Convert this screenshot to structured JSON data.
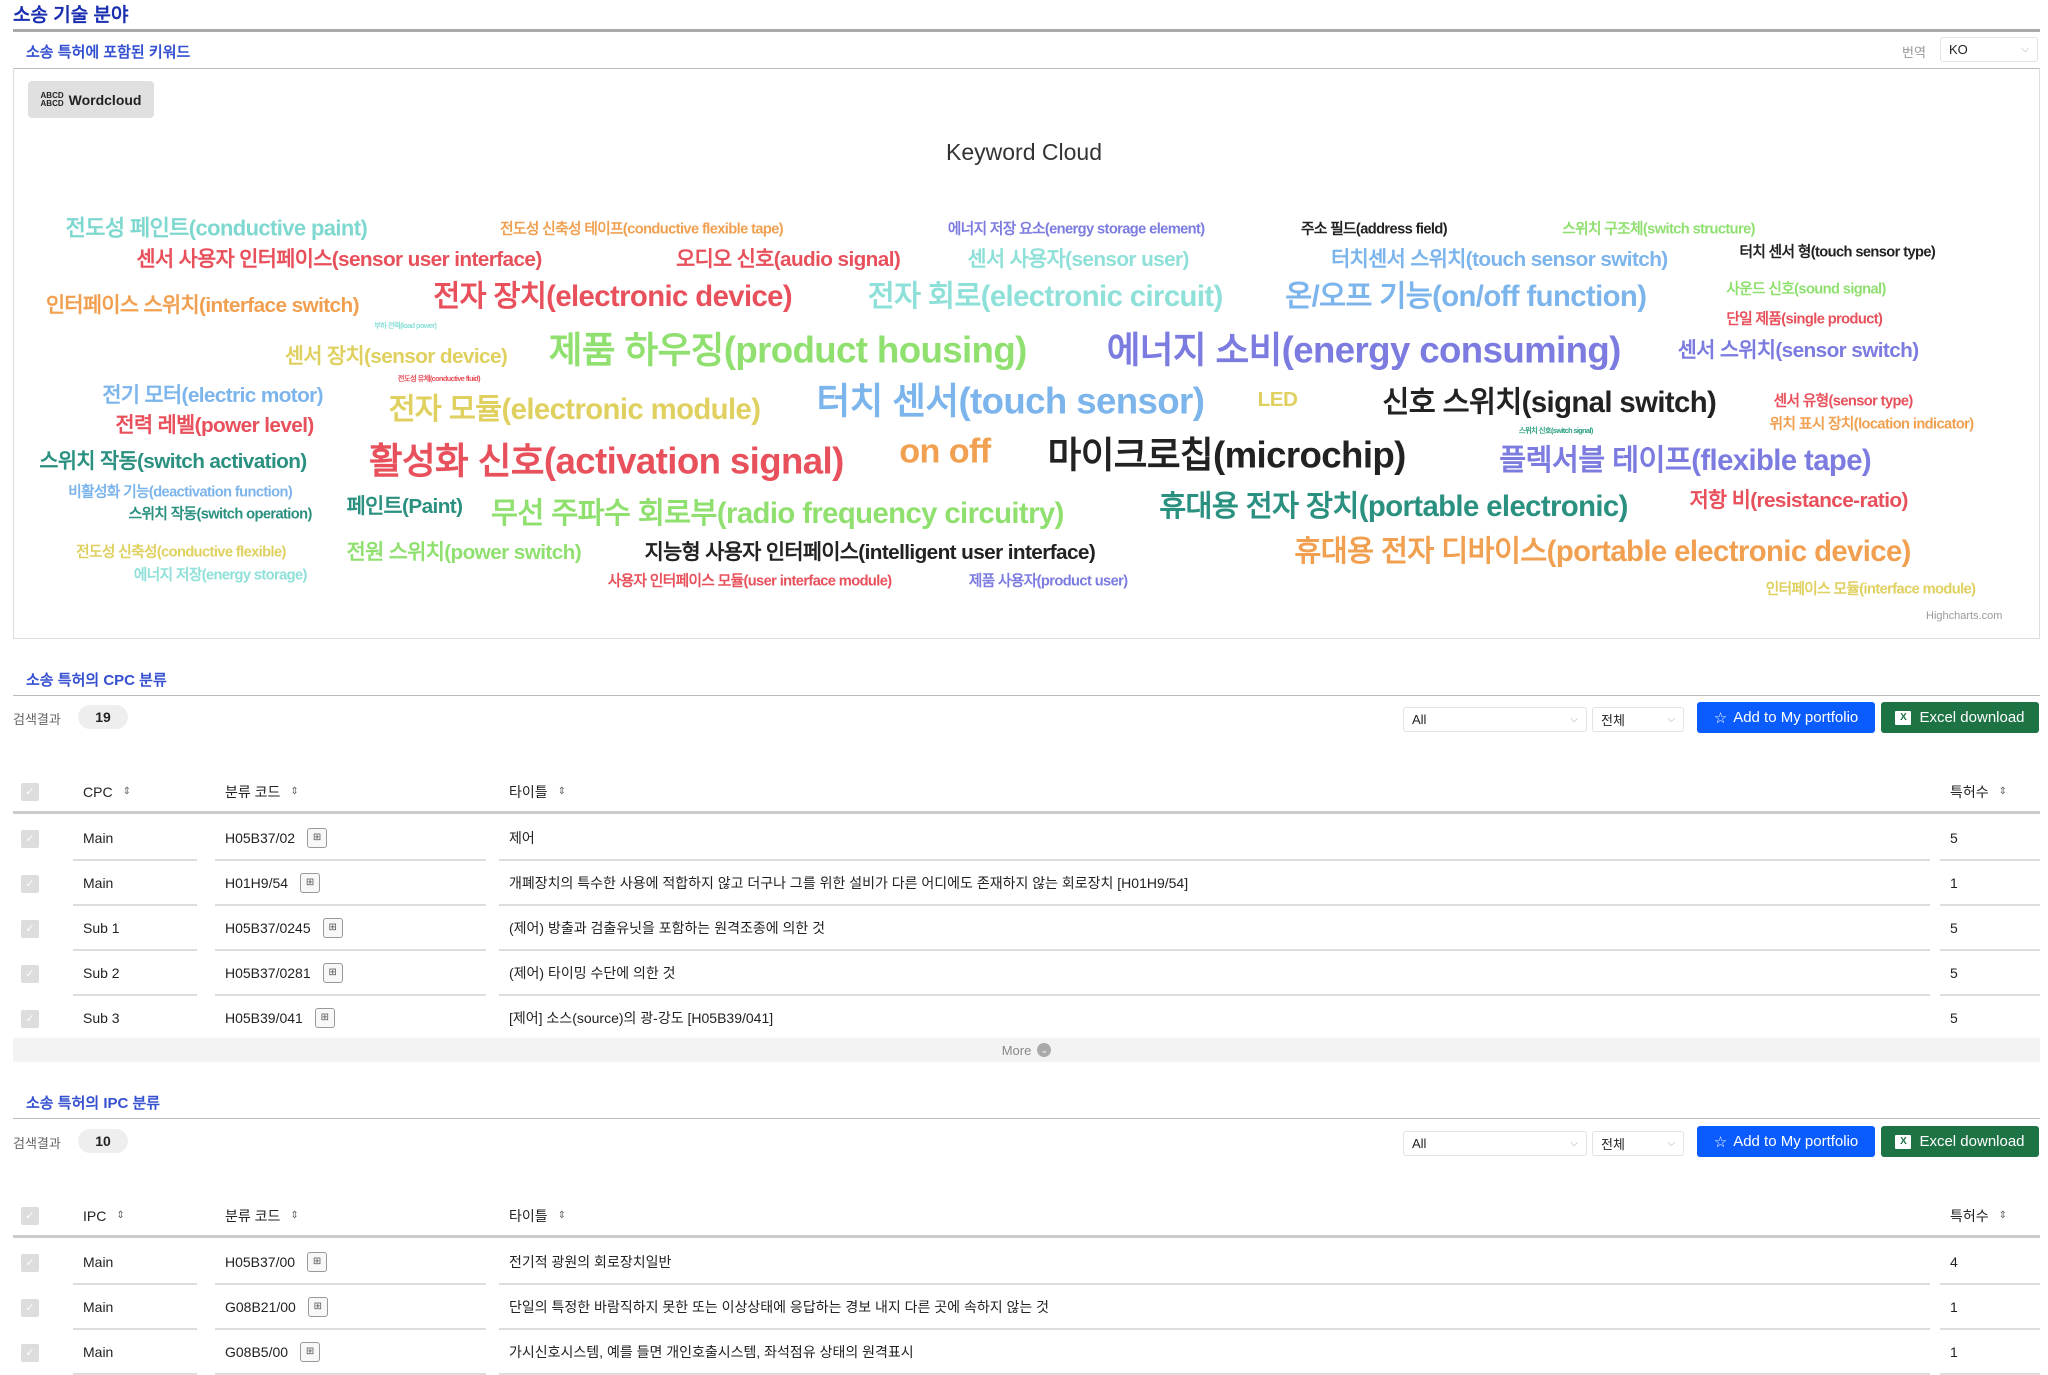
{
  "page_title": "소송 기술 분야",
  "keywords_section": {
    "title": "소송 특허에 포함된 키워드",
    "translate_label": "번역",
    "language": "KO",
    "wordcloud_button": "Wordcloud",
    "wordcloud_icon": "wordcloud-icon",
    "chart_title": "Keyword Cloud",
    "credits": "Highcharts.com",
    "words": [
      {
        "text": "전도성 페인트(conductive paint)",
        "color": "#7fd8d0"
      },
      {
        "text": "전도성 신축성 테이프(conductive flexible tape)",
        "color": "#f0a050"
      },
      {
        "text": "에너지 저장 요소(energy storage element)",
        "color": "#7b7be0"
      },
      {
        "text": "주소 필드(address field)",
        "color": "#222222"
      },
      {
        "text": "스위치 구조체(switch structure)",
        "color": "#90e070"
      },
      {
        "text": "센서 사용자 인터페이스(sensor user interface)",
        "color": "#e8505b"
      },
      {
        "text": "오디오 신호(audio signal)",
        "color": "#e8505b"
      },
      {
        "text": "센서 사용자(sensor user)",
        "color": "#8ee0d8"
      },
      {
        "text": "터치센서 스위치(touch sensor switch)",
        "color": "#7cb4ec"
      },
      {
        "text": "터치 센서 형(touch sensor type)",
        "color": "#222222"
      },
      {
        "text": "인터페이스 스위치(interface switch)",
        "color": "#f0a050"
      },
      {
        "text": "전자 장치(electronic device)",
        "color": "#e8505b"
      },
      {
        "text": "전자 회로(electronic circuit)",
        "color": "#8ee0d8"
      },
      {
        "text": "온/오프 기능(on/off function)",
        "color": "#7cb4ec"
      },
      {
        "text": "사운드 신호(sound signal)",
        "color": "#90e070"
      },
      {
        "text": "단일 제품(single product)",
        "color": "#e8505b"
      },
      {
        "text": "부하 전력(load power)",
        "color": "#8ee0d8"
      },
      {
        "text": "센서 장치(sensor device)",
        "color": "#e0d060"
      },
      {
        "text": "제품 하우징(product housing)",
        "color": "#90e070"
      },
      {
        "text": "에너지 소비(energy consuming)",
        "color": "#7b7be0"
      },
      {
        "text": "센서 스위치(sensor switch)",
        "color": "#7b7be0"
      },
      {
        "text": "전도성 유체(conductive fluid)",
        "color": "#e8505b"
      },
      {
        "text": "전기 모터(electric motor)",
        "color": "#7cb4ec"
      },
      {
        "text": "전자 모듈(electronic module)",
        "color": "#e0d060"
      },
      {
        "text": "터치 센서(touch sensor)",
        "color": "#7cb4ec"
      },
      {
        "text": "LED",
        "color": "#e0d060"
      },
      {
        "text": "신호 스위치(signal switch)",
        "color": "#222222"
      },
      {
        "text": "센서 유형(sensor type)",
        "color": "#e8505b"
      },
      {
        "text": "전력 레벨(power level)",
        "color": "#e8505b"
      },
      {
        "text": "위치 표시 장치(location indicator)",
        "color": "#f0a050"
      },
      {
        "text": "스위치 신호(switch signal)",
        "color": "#2aa080"
      },
      {
        "text": "스위치 작동(switch activation)",
        "color": "#2a9080"
      },
      {
        "text": "활성화 신호(activation signal)",
        "color": "#e8505b"
      },
      {
        "text": "on off",
        "color": "#f0a050"
      },
      {
        "text": "마이크로칩(microchip)",
        "color": "#222222"
      },
      {
        "text": "플렉서블 테이프(flexible tape)",
        "color": "#7b7be0"
      },
      {
        "text": "비활성화 기능(deactivation function)",
        "color": "#7cb4ec"
      },
      {
        "text": "페인트(Paint)",
        "color": "#2a9080"
      },
      {
        "text": "무선 주파수 회로부(radio frequency circuitry)",
        "color": "#90e070"
      },
      {
        "text": "휴대용 전자 장치(portable electronic)",
        "color": "#2a9080"
      },
      {
        "text": "저항 비(resistance-ratio)",
        "color": "#e8505b"
      },
      {
        "text": "스위치 작동(switch operation)",
        "color": "#2a9080"
      },
      {
        "text": "전도성 신축성(conductive flexible)",
        "color": "#e0d060"
      },
      {
        "text": "전원 스위치(power switch)",
        "color": "#90e070"
      },
      {
        "text": "지능형 사용자 인터페이스(intelligent user interface)",
        "color": "#222222"
      },
      {
        "text": "휴대용 전자 디바이스(portable electronic device)",
        "color": "#f0a050"
      },
      {
        "text": "에너지 저장(energy storage)",
        "color": "#8ee0d8"
      },
      {
        "text": "사용자 인터페이스 모듈(user interface module)",
        "color": "#e8505b"
      },
      {
        "text": "제품 사용자(product user)",
        "color": "#7b7be0"
      },
      {
        "text": "인터페이스 모듈(interface module)",
        "color": "#e0d060"
      }
    ]
  },
  "cpc": {
    "title": "소송 특허의 CPC 분류",
    "results_label": "검색결과",
    "results_count": "19",
    "filter1": "All",
    "filter2": "전체",
    "add_portfolio": "Add to My portfolio",
    "excel": "Excel download",
    "headers": [
      "CPC",
      "분류 코드",
      "타이틀",
      "특허수"
    ],
    "rows": [
      {
        "type": "Main",
        "code": "H05B37/02",
        "title": "제어",
        "count": "5"
      },
      {
        "type": "Main",
        "code": "H01H9/54",
        "title": "개폐장치의 특수한 사용에 적합하지 않고 더구나 그를 위한 설비가 다른 어디에도 존재하지 않는 회로장치 [H01H9/54]",
        "count": "1"
      },
      {
        "type": "Sub 1",
        "code": "H05B37/0245",
        "title": "(제어) 방출과 검출유닛을 포함하는 원격조종에 의한 것",
        "count": "5"
      },
      {
        "type": "Sub 2",
        "code": "H05B37/0281",
        "title": "(제어) 타이밍 수단에 의한 것",
        "count": "5"
      },
      {
        "type": "Sub 3",
        "code": "H05B39/041",
        "title": "[제어] 소스(source)의 광-강도 [H05B39/041]",
        "count": "5"
      }
    ],
    "more": "More"
  },
  "ipc": {
    "title": "소송 특허의 IPC 분류",
    "results_label": "검색결과",
    "results_count": "10",
    "filter1": "All",
    "filter2": "전체",
    "add_portfolio": "Add to My portfolio",
    "excel": "Excel download",
    "headers": [
      "IPC",
      "분류 코드",
      "타이틀",
      "특허수"
    ],
    "rows": [
      {
        "type": "Main",
        "code": "H05B37/00",
        "title": "전기적 광원의 회로장치일반",
        "count": "4"
      },
      {
        "type": "Main",
        "code": "G08B21/00",
        "title": "단일의 특정한 바람직하지 못한 또는 이상상태에 응답하는 경보 내지 다른 곳에 속하지 않는 것",
        "count": "1"
      },
      {
        "type": "Main",
        "code": "G08B5/00",
        "title": "가시신호시스템, 예를 들면 개인호출시스템, 좌석점유 상태의 원격표시",
        "count": "1"
      }
    ]
  }
}
